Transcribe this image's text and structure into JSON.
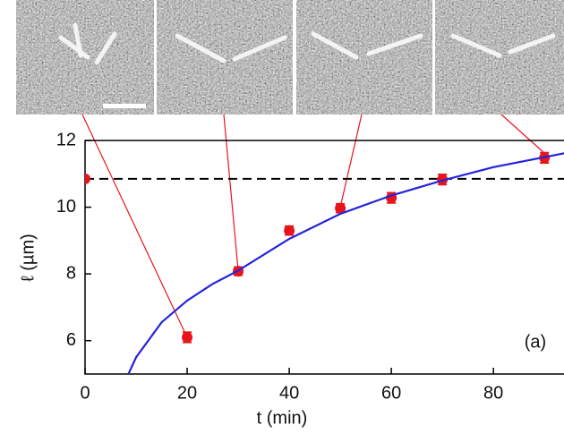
{
  "chart_data": {
    "type": "scatter",
    "xlabel": "t (min)",
    "ylabel": "ℓ (µm)",
    "annotation": "(a)",
    "xlim": [
      0,
      94
    ],
    "ylim": [
      5,
      12
    ],
    "xticks": [
      0,
      20,
      40,
      60,
      80
    ],
    "yticks": [
      6,
      8,
      10,
      12
    ],
    "series": [
      {
        "color": "#e8141c",
        "x": [
          0,
          20,
          30,
          40,
          50,
          60,
          70,
          90
        ],
        "values": [
          10.85,
          6.1,
          8.08,
          9.3,
          9.97,
          10.28,
          10.83,
          11.48
        ],
        "errors": [
          null,
          0.15,
          0.12,
          0.13,
          0.13,
          0.15,
          0.15,
          0.15
        ]
      },
      {
        "type": "line",
        "color": "#2424d8",
        "x": [
          8.5,
          10,
          15,
          20,
          25,
          30,
          40,
          50,
          60,
          70,
          80,
          94
        ],
        "values": [
          5.0,
          5.5,
          6.55,
          7.2,
          7.7,
          8.1,
          9.05,
          9.8,
          10.35,
          10.8,
          11.2,
          11.62
        ]
      }
    ],
    "reference_line": {
      "value": 10.85,
      "color": "#000000",
      "dashed": true
    }
  }
}
